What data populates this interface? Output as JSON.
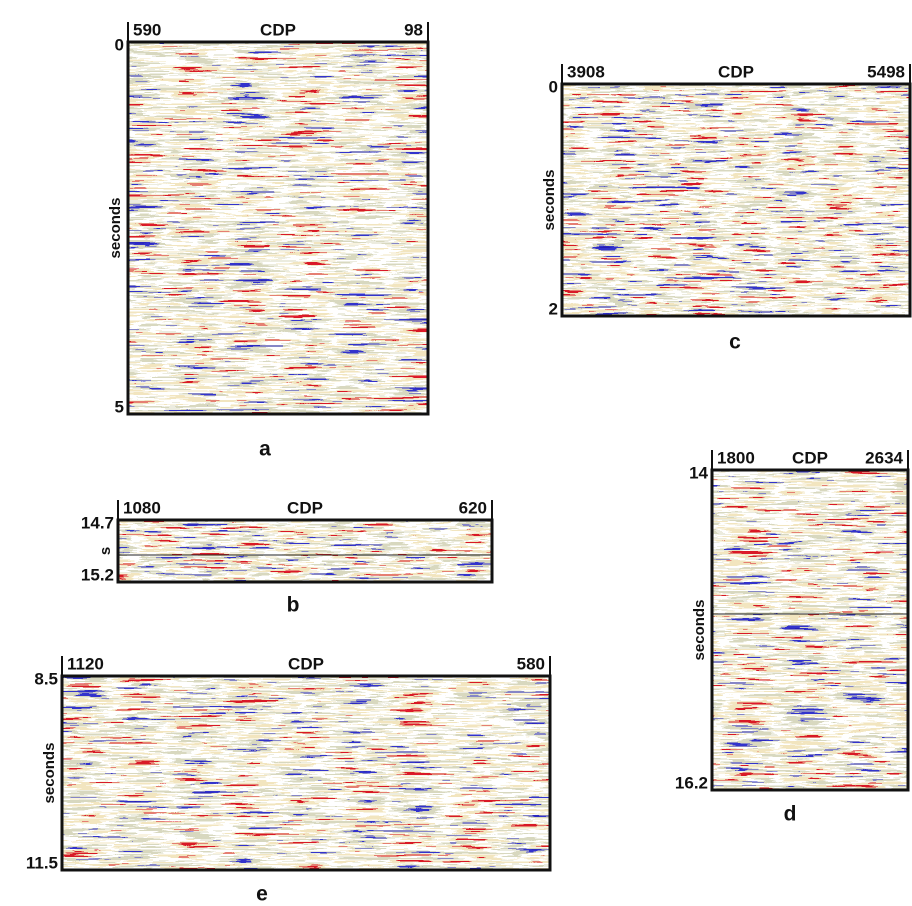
{
  "panels": [
    {
      "letter": "a",
      "cdp_label": "CDP",
      "cdp_start": "590",
      "cdp_end": "98",
      "time_top": "0",
      "time_bottom": "5",
      "axis_label": "seconds"
    },
    {
      "letter": "b",
      "cdp_label": "CDP",
      "cdp_start": "1080",
      "cdp_end": "620",
      "time_top": "14.7",
      "time_bottom": "15.2",
      "axis_label": "s"
    },
    {
      "letter": "c",
      "cdp_label": "CDP",
      "cdp_start": "3908",
      "cdp_end": "5498",
      "time_top": "0",
      "time_bottom": "2",
      "axis_label": "seconds"
    },
    {
      "letter": "d",
      "cdp_label": "CDP",
      "cdp_start": "1800",
      "cdp_end": "2634",
      "time_top": "14",
      "time_bottom": "16.2",
      "axis_label": "seconds"
    },
    {
      "letter": "e",
      "cdp_label": "CDP",
      "cdp_start": "1120",
      "cdp_end": "580",
      "time_top": "8.5",
      "time_bottom": "11.5",
      "axis_label": "seconds"
    }
  ]
}
